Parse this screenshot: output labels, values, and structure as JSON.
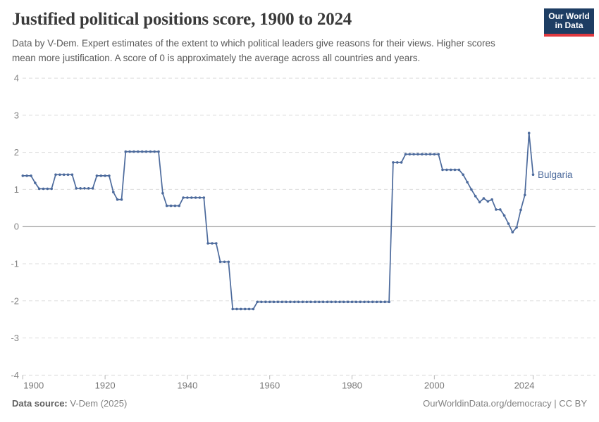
{
  "header": {
    "title": "Justified political positions score, 1900 to 2024",
    "subtitle": "Data by V-Dem. Expert estimates of the extent to which political leaders give reasons for their views. Higher scores mean more justification. A score of 0 is approximately the average across all countries and years.",
    "logo": {
      "line1": "Our World",
      "line2": "in Data",
      "bg_color": "#1d3d63",
      "accent_color": "#e0393f"
    }
  },
  "chart_data": {
    "type": "line",
    "title": "Justified political positions score, 1900 to 2024",
    "xlabel": "",
    "ylabel": "",
    "xlim": [
      1900,
      2024
    ],
    "ylim": [
      -4,
      4
    ],
    "x_ticks": [
      1900,
      1920,
      1940,
      1960,
      1980,
      2000,
      2024
    ],
    "y_ticks": [
      4,
      3,
      2,
      1,
      0,
      -1,
      -2,
      -3,
      -4
    ],
    "grid": "horizontal-dashed",
    "zero_line": true,
    "legend_position": "right-of-line-end",
    "entity_label": "Bulgaria",
    "colors": {
      "line": "#4c6a9c",
      "grid": "#dcdcdc",
      "zero_line": "#a0a0a0",
      "tick_label": "#858585",
      "tick_mark": "#b5b5b5"
    },
    "series": [
      {
        "name": "Bulgaria",
        "start_year": 1900,
        "end_year": 2024,
        "step": 1,
        "values": [
          1.37,
          1.37,
          1.37,
          1.18,
          1.02,
          1.02,
          1.02,
          1.02,
          1.4,
          1.4,
          1.4,
          1.4,
          1.4,
          1.03,
          1.03,
          1.03,
          1.03,
          1.03,
          1.37,
          1.37,
          1.37,
          1.37,
          0.93,
          0.73,
          0.73,
          2.02,
          2.02,
          2.02,
          2.02,
          2.02,
          2.02,
          2.02,
          2.02,
          2.02,
          0.9,
          0.56,
          0.56,
          0.56,
          0.56,
          0.78,
          0.78,
          0.78,
          0.78,
          0.78,
          0.78,
          -0.45,
          -0.45,
          -0.45,
          -0.95,
          -0.95,
          -0.95,
          -2.22,
          -2.22,
          -2.22,
          -2.22,
          -2.22,
          -2.22,
          -2.03,
          -2.03,
          -2.03,
          -2.03,
          -2.03,
          -2.03,
          -2.03,
          -2.03,
          -2.03,
          -2.03,
          -2.03,
          -2.03,
          -2.03,
          -2.03,
          -2.03,
          -2.03,
          -2.03,
          -2.03,
          -2.03,
          -2.03,
          -2.03,
          -2.03,
          -2.03,
          -2.03,
          -2.03,
          -2.03,
          -2.03,
          -2.03,
          -2.03,
          -2.03,
          -2.03,
          -2.03,
          -2.03,
          1.73,
          1.73,
          1.73,
          1.95,
          1.95,
          1.95,
          1.95,
          1.95,
          1.95,
          1.95,
          1.95,
          1.95,
          1.53,
          1.53,
          1.53,
          1.53,
          1.53,
          1.4,
          1.2,
          1.0,
          0.82,
          0.66,
          0.76,
          0.68,
          0.73,
          0.46,
          0.46,
          0.3,
          0.08,
          -0.15,
          -0.02,
          0.45,
          0.85,
          2.52,
          1.4
        ]
      }
    ]
  },
  "footer": {
    "source_label": "Data source:",
    "source_value": " V-Dem (2025)",
    "credit": "OurWorldinData.org/democracy | CC BY"
  }
}
